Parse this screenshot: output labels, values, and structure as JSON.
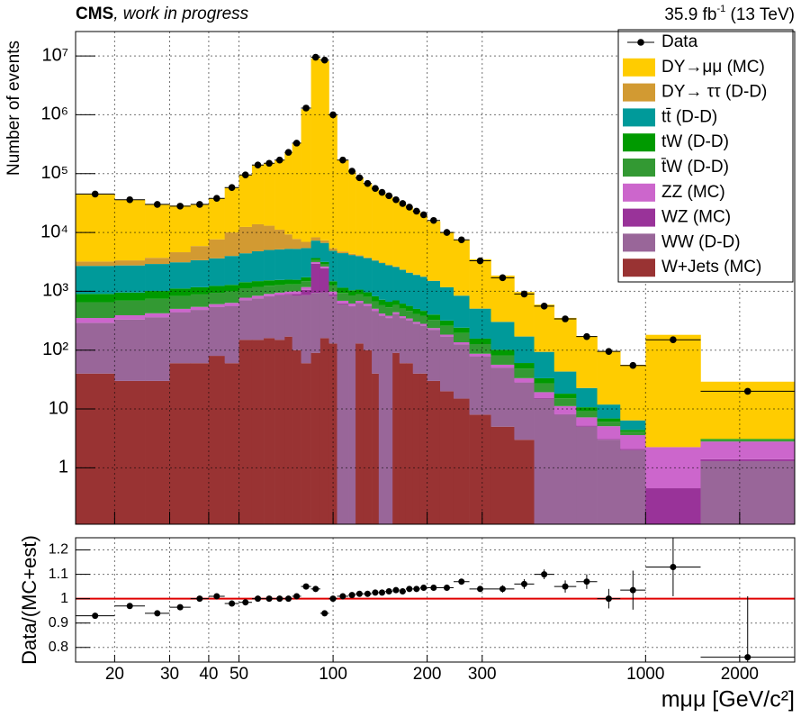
{
  "chart_data": {
    "type": "histogram",
    "title": "CMS",
    "subtitle": ", work in progress",
    "lumi": "35.9 fb",
    "lumi_sup": "-1",
    "lumi_tail": " (13 TeV)",
    "ylabel": "Number of events",
    "xlabel": "mμμ [GeV/c²]",
    "log_x": true,
    "log_y": true,
    "grid": true,
    "legend": "upper right",
    "bins": [
      15,
      20,
      25,
      30,
      35,
      40,
      45,
      50,
      55,
      60,
      65,
      70,
      74,
      79,
      85,
      91,
      97,
      103,
      112,
      118,
      125,
      133,
      140,
      147,
      155,
      163,
      171,
      180,
      190,
      200,
      220,
      243,
      273,
      320,
      380,
      440,
      510,
      600,
      700,
      830,
      1000,
      1500,
      3000
    ],
    "xlim": [
      15,
      3000
    ],
    "xticks": [
      20,
      30,
      40,
      50,
      100,
      200,
      300,
      1000,
      2000
    ],
    "ylim": [
      0.11,
      26000000
    ],
    "yticks": [
      1,
      10,
      {
        "value": 100,
        "label": "10²"
      },
      {
        "value": 1000,
        "label": "10³"
      },
      {
        "value": 10000,
        "label": "10⁴"
      },
      {
        "value": 100000,
        "label": "10⁵"
      },
      {
        "value": 1000000,
        "label": "10⁶"
      },
      {
        "value": 10000000,
        "label": "10⁷"
      }
    ],
    "data": {
      "name": "Data",
      "color": "#000000",
      "values": [
        45000,
        36000,
        30000,
        28000,
        30000,
        38000,
        58000,
        95000,
        140000,
        150000,
        170000,
        230000,
        330000,
        1300000,
        9500000,
        8500000,
        1000000,
        170000,
        110000,
        85000,
        68000,
        56000,
        48000,
        42000,
        36000,
        31000,
        27000,
        23000,
        20000,
        16000,
        10000,
        7500,
        3300,
        1700,
        900,
        560,
        340,
        170,
        95,
        55,
        150,
        20
      ]
    },
    "series": [
      {
        "name": "DY→μμ (MC)",
        "color": "#ffcc00",
        "values": [
          42000,
          33000,
          26000,
          24000,
          24000,
          30000,
          48000,
          83000,
          125000,
          137000,
          158000,
          220000,
          320000,
          1240000,
          9100000,
          8200000,
          990000,
          165000,
          105000,
          80000,
          63000,
          52000,
          44000,
          38000,
          33000,
          28000,
          25000,
          21000,
          18000,
          14000,
          9000,
          6700,
          3000,
          1550,
          800,
          500,
          310,
          150,
          85,
          50,
          180,
          26
        ]
      },
      {
        "name": "DY→ ττ (D-D)",
        "color": "#d29a32",
        "values": [
          500,
          600,
          800,
          1500,
          2500,
          4000,
          6000,
          8000,
          9000,
          8000,
          6000,
          4000,
          2500,
          1500,
          1000,
          700,
          500,
          300,
          200,
          150,
          100,
          80,
          60,
          50,
          40,
          30,
          25,
          20,
          15,
          12,
          8,
          5,
          3,
          2,
          1,
          0.5,
          0.2,
          0.1,
          0,
          0,
          0,
          0
        ]
      },
      {
        "name": "tt̄ (D-D)",
        "color": "#009a9a",
        "values": [
          1800,
          1800,
          1900,
          2000,
          2200,
          2400,
          2700,
          3000,
          3300,
          3500,
          3600,
          3700,
          3700,
          3700,
          3600,
          3500,
          3400,
          3300,
          3100,
          2900,
          2700,
          2500,
          2300,
          2100,
          1900,
          1700,
          1500,
          1400,
          1300,
          1100,
          850,
          600,
          350,
          200,
          110,
          60,
          25,
          12,
          5,
          2,
          0,
          0
        ]
      },
      {
        "name": "tW (D-D)",
        "color": "#009a00",
        "values": [
          250,
          260,
          270,
          280,
          290,
          290,
          300,
          300,
          300,
          290,
          280,
          270,
          260,
          250,
          240,
          230,
          220,
          210,
          190,
          170,
          160,
          150,
          140,
          130,
          120,
          110,
          100,
          90,
          85,
          75,
          60,
          45,
          30,
          20,
          12,
          6,
          3,
          1.5,
          0.8,
          0.3,
          0,
          0.1
        ]
      },
      {
        "name": "t̄W (D-D)",
        "color": "#339933",
        "values": [
          300,
          300,
          320,
          330,
          340,
          340,
          350,
          350,
          350,
          340,
          330,
          320,
          310,
          300,
          290,
          280,
          270,
          250,
          230,
          210,
          190,
          170,
          160,
          150,
          140,
          130,
          120,
          110,
          100,
          90,
          75,
          60,
          40,
          25,
          15,
          8,
          4,
          2,
          1,
          0.5,
          0,
          0.2
        ]
      },
      {
        "name": "ZZ (MC)",
        "color": "#cc66cc",
        "values": [
          60,
          60,
          60,
          60,
          60,
          60,
          70,
          70,
          80,
          80,
          80,
          90,
          100,
          120,
          200,
          180,
          100,
          70,
          60,
          50,
          45,
          40,
          35,
          30,
          28,
          25,
          22,
          20,
          18,
          15,
          12,
          10,
          8,
          6,
          5,
          4,
          3,
          2,
          2,
          1.5,
          1.8,
          1.4
        ]
      },
      {
        "name": "WZ (MC)",
        "color": "#993399",
        "values": [
          2,
          2,
          3,
          3,
          4,
          5,
          6,
          8,
          10,
          15,
          20,
          30,
          50,
          200,
          2000,
          1500,
          60,
          20,
          10,
          8,
          6,
          5,
          4,
          4,
          3,
          3,
          3,
          2,
          2,
          2,
          1.5,
          1,
          0.8,
          0.5,
          0.4,
          0.3,
          0.2,
          0.2,
          0.1,
          0.1,
          0.45,
          0.1
        ]
      },
      {
        "name": "WW (D-D)",
        "color": "#996699",
        "values": [
          250,
          300,
          330,
          380,
          420,
          460,
          500,
          550,
          600,
          650,
          700,
          700,
          750,
          800,
          850,
          800,
          700,
          600,
          550,
          500,
          460,
          420,
          380,
          350,
          320,
          290,
          260,
          240,
          220,
          190,
          150,
          110,
          70,
          45,
          25,
          15,
          8,
          5,
          3,
          2,
          0,
          1.3
        ]
      },
      {
        "name": "W+Jets (MC)",
        "color": "#993333",
        "values": [
          40,
          30,
          30,
          60,
          60,
          80,
          60,
          150,
          150,
          160,
          150,
          170,
          100,
          60,
          90,
          160,
          130,
          0,
          0,
          130,
          100,
          40,
          0,
          0,
          90,
          60,
          60,
          40,
          40,
          30,
          20,
          15,
          8,
          5,
          3,
          0,
          0,
          0,
          0,
          0,
          0,
          0
        ]
      }
    ],
    "ratio": {
      "ylabel": "Data/(MC+est)",
      "ylim": [
        0.74,
        1.25
      ],
      "yticks": [
        0.8,
        0.9,
        1,
        1.1,
        1.2
      ],
      "reference_line": 1,
      "line_color": "#e00000",
      "values": [
        0.93,
        0.97,
        0.94,
        0.965,
        1.0,
        1.01,
        0.98,
        0.985,
        1.0,
        1.0,
        1.0,
        1.0,
        1.01,
        1.05,
        1.04,
        0.94,
        1.0,
        1.01,
        1.015,
        1.02,
        1.02,
        1.025,
        1.025,
        1.03,
        1.035,
        1.03,
        1.04,
        1.04,
        1.045,
        1.045,
        1.045,
        1.07,
        1.04,
        1.04,
        1.06,
        1.1,
        1.05,
        1.07,
        1.0,
        1.035,
        1.13,
        0.76
      ],
      "errors": [
        0.01,
        0.01,
        0.01,
        0.01,
        0.01,
        0.01,
        0.01,
        0.005,
        0.005,
        0.005,
        0.005,
        0.005,
        0.005,
        0.003,
        0.002,
        0.002,
        0.003,
        0.005,
        0.005,
        0.005,
        0.005,
        0.005,
        0.005,
        0.005,
        0.005,
        0.005,
        0.006,
        0.006,
        0.007,
        0.007,
        0.008,
        0.01,
        0.012,
        0.015,
        0.02,
        0.02,
        0.025,
        0.03,
        0.04,
        0.08,
        0.12,
        0.25
      ]
    }
  }
}
